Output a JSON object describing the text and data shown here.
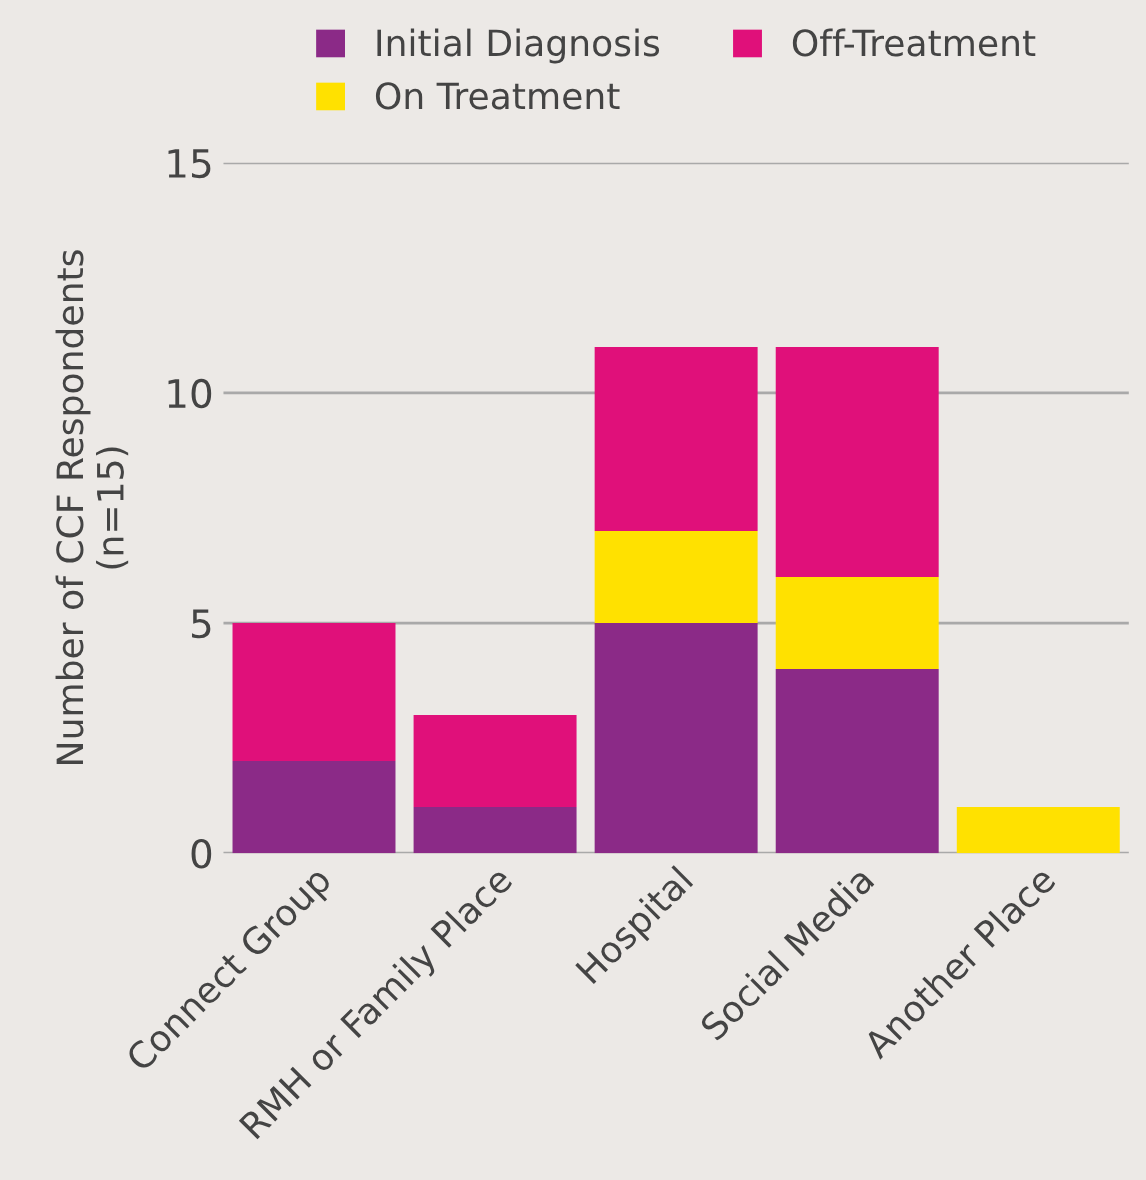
{
  "chart_data": {
    "type": "bar",
    "stacked": true,
    "ylabel": "Number of CCF Respondents\n(n=15)",
    "categories": [
      "Connect Group",
      "RMH or Family Place",
      "Hospital",
      "Social Media",
      "Another Place"
    ],
    "series": [
      {
        "name": "Initial Diagnosis",
        "color": "#8b2a87",
        "values": [
          2,
          1,
          5,
          4,
          0
        ]
      },
      {
        "name": "On Treatment",
        "color": "#ffe100",
        "values": [
          0,
          0,
          2,
          2,
          1
        ]
      },
      {
        "name": "Off-Treatment",
        "color": "#e0107a",
        "values": [
          3,
          2,
          4,
          5,
          0
        ]
      }
    ],
    "ylim": [
      0,
      15
    ],
    "yticks": [
      0,
      5,
      10,
      15
    ],
    "grid": "y",
    "legend": "top"
  }
}
